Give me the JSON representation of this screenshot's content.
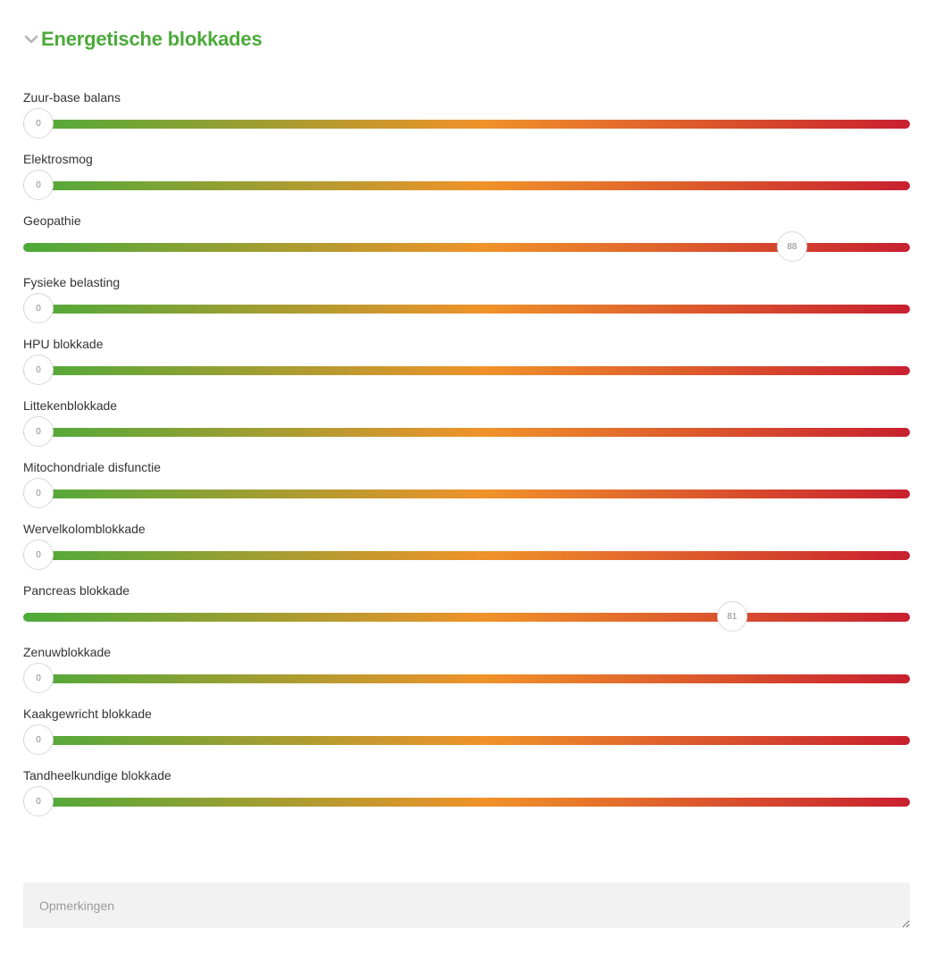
{
  "section": {
    "title": "Energetische blokkades",
    "icon": "chevron-down-icon"
  },
  "colors": {
    "title": "#4caa3a",
    "gradient": [
      "#4caa3a",
      "#f0922a",
      "#c8202f"
    ]
  },
  "sliders": [
    {
      "id": "zuur-base-balans",
      "label": "Zuur-base balans",
      "value": 0
    },
    {
      "id": "elektrosmog",
      "label": "Elektrosmog",
      "value": 0
    },
    {
      "id": "geopathie",
      "label": "Geopathie",
      "value": 88
    },
    {
      "id": "fysieke-belasting",
      "label": "Fysieke belasting",
      "value": 0
    },
    {
      "id": "hpu-blokkade",
      "label": "HPU blokkade",
      "value": 0
    },
    {
      "id": "littekenblokkade",
      "label": "Littekenblokkade",
      "value": 0
    },
    {
      "id": "mitochondriale-disfunctie",
      "label": "Mitochondriale disfunctie",
      "value": 0
    },
    {
      "id": "wervelkolomblokkade",
      "label": "Wervelkolomblokkade",
      "value": 0
    },
    {
      "id": "pancreas-blokkade",
      "label": "Pancreas blokkade",
      "value": 81
    },
    {
      "id": "zenuwblokkade",
      "label": "Zenuwblokkade",
      "value": 0
    },
    {
      "id": "kaakgewricht-blokkade",
      "label": "Kaakgewricht blokkade",
      "value": 0
    },
    {
      "id": "tandheelkundige-blokkade",
      "label": "Tandheelkundige blokkade",
      "value": 0
    }
  ],
  "slider_range": [
    0,
    100
  ],
  "remarks": {
    "placeholder": "Opmerkingen",
    "value": ""
  }
}
